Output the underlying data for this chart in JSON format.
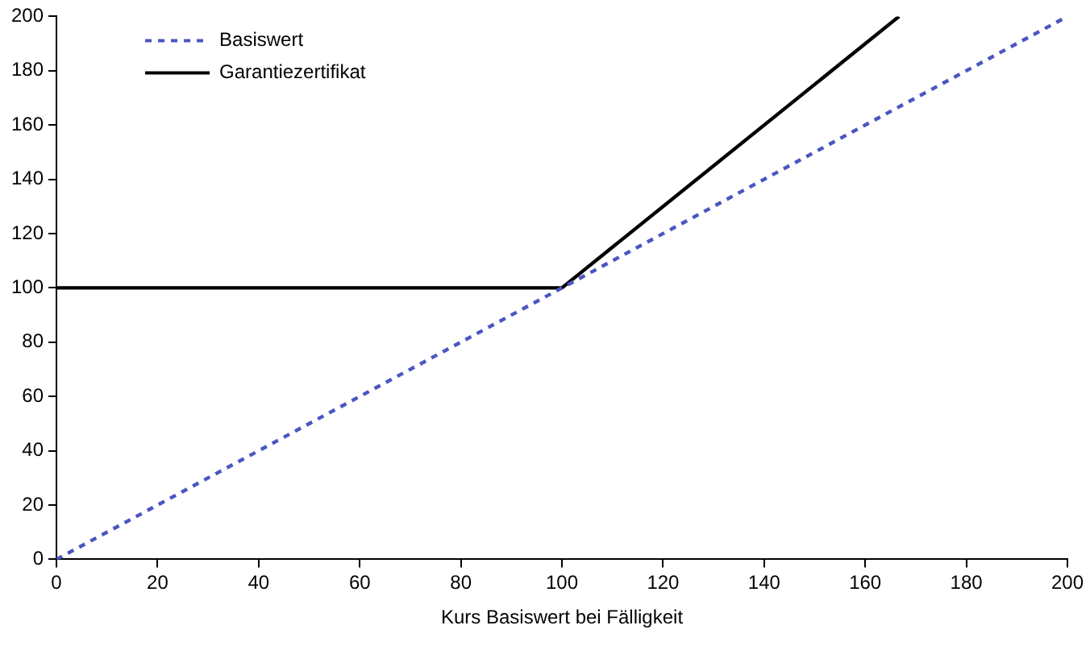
{
  "chart_data": {
    "type": "line",
    "xlabel": "Kurs Basiswert bei Fälligkeit",
    "xlim": [
      0,
      200
    ],
    "xticks": [
      0,
      20,
      40,
      60,
      80,
      100,
      120,
      140,
      160,
      180,
      200
    ],
    "ylim": [
      0,
      200
    ],
    "yticks": [
      0,
      20,
      40,
      60,
      80,
      100,
      120,
      140,
      160,
      180,
      200
    ],
    "grid": false,
    "legend": "top left",
    "marker": "none",
    "series": [
      {
        "name": "Basiswert",
        "color": "#4a56c0",
        "line_style": "dotted",
        "x": [
          0,
          200
        ],
        "values": [
          0,
          200
        ]
      },
      {
        "name": "Garantiezertifikat",
        "color": "#000000",
        "line_style": "solid",
        "x": [
          0,
          100,
          166.7
        ],
        "values": [
          100,
          100,
          200
        ]
      }
    ]
  }
}
